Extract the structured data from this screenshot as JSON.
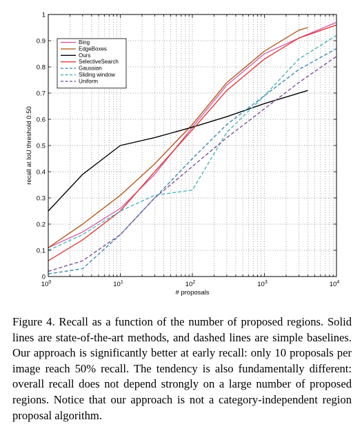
{
  "chart_data": {
    "type": "line",
    "xlabel": "# proposals",
    "ylabel": "recall at IoU threshold 0.50",
    "x_scale": "log",
    "xlim": [
      1,
      10000
    ],
    "ylim": [
      0,
      1
    ],
    "x_ticks": [
      {
        "value": 1,
        "base": "10",
        "exp": "0"
      },
      {
        "value": 10,
        "base": "10",
        "exp": "1"
      },
      {
        "value": 100,
        "base": "10",
        "exp": "2"
      },
      {
        "value": 1000,
        "base": "10",
        "exp": "3"
      },
      {
        "value": 10000,
        "base": "10",
        "exp": "4"
      }
    ],
    "y_ticks": [
      "0",
      "0.1",
      "0.2",
      "0.3",
      "0.4",
      "0.5",
      "0.6",
      "0.7",
      "0.8",
      "0.9",
      "1"
    ],
    "grid": true,
    "legend_position": "top-left",
    "series": [
      {
        "name": "Bing",
        "color": "#d65fa8",
        "dash": false,
        "x": [
          1,
          3,
          10,
          30,
          100,
          300,
          1000,
          3000,
          10000
        ],
        "y": [
          0.11,
          0.17,
          0.26,
          0.39,
          0.57,
          0.73,
          0.85,
          0.91,
          0.97
        ]
      },
      {
        "name": "EdgeBoxes",
        "color": "#b35a1f",
        "dash": false,
        "x": [
          1,
          3,
          10,
          30,
          100,
          300,
          1000,
          3000,
          4000
        ],
        "y": [
          0.11,
          0.2,
          0.31,
          0.43,
          0.58,
          0.74,
          0.86,
          0.94,
          0.95
        ]
      },
      {
        "name": "Ours",
        "color": "#000000",
        "dash": false,
        "x": [
          1,
          3,
          10,
          30,
          100,
          300,
          1000,
          4000
        ],
        "y": [
          0.25,
          0.39,
          0.5,
          0.53,
          0.57,
          0.61,
          0.66,
          0.71
        ]
      },
      {
        "name": "SelectiveSearch",
        "color": "#dd3a3a",
        "dash": false,
        "x": [
          1,
          3,
          10,
          30,
          100,
          300,
          1000,
          3000,
          10000
        ],
        "y": [
          0.06,
          0.14,
          0.25,
          0.4,
          0.56,
          0.71,
          0.83,
          0.91,
          0.96
        ]
      },
      {
        "name": "Gaussian",
        "color": "#3d8ab2",
        "dash": true,
        "x": [
          1,
          3,
          10,
          30,
          100,
          300,
          1000,
          3000,
          10000
        ],
        "y": [
          0.01,
          0.03,
          0.16,
          0.3,
          0.45,
          0.58,
          0.69,
          0.79,
          0.87
        ]
      },
      {
        "name": "Sliding window",
        "color": "#4cb4b8",
        "dash": true,
        "x": [
          1,
          3,
          10,
          30,
          100,
          300,
          1000,
          3000,
          10000
        ],
        "y": [
          0.1,
          0.16,
          0.25,
          0.31,
          0.33,
          0.55,
          0.69,
          0.83,
          0.92
        ]
      },
      {
        "name": "Uniform",
        "color": "#7d4f98",
        "dash": true,
        "x": [
          1,
          3,
          10,
          30,
          100,
          300,
          1000,
          3000,
          10000
        ],
        "y": [
          0.02,
          0.06,
          0.16,
          0.3,
          0.42,
          0.53,
          0.64,
          0.74,
          0.84
        ]
      }
    ]
  },
  "caption": {
    "label": "Figure 4.",
    "text": "Recall as a function of the number of proposed regions. Solid lines are state-of-the-art methods, and dashed lines are simple baselines. Our approach is significantly better at early recall: only 10 proposals per image reach 50% recall. The tendency is also fundamentally different: overall recall does not depend strongly on a large number of proposed regions. Notice that our approach is not a category-independent region proposal algorithm."
  }
}
